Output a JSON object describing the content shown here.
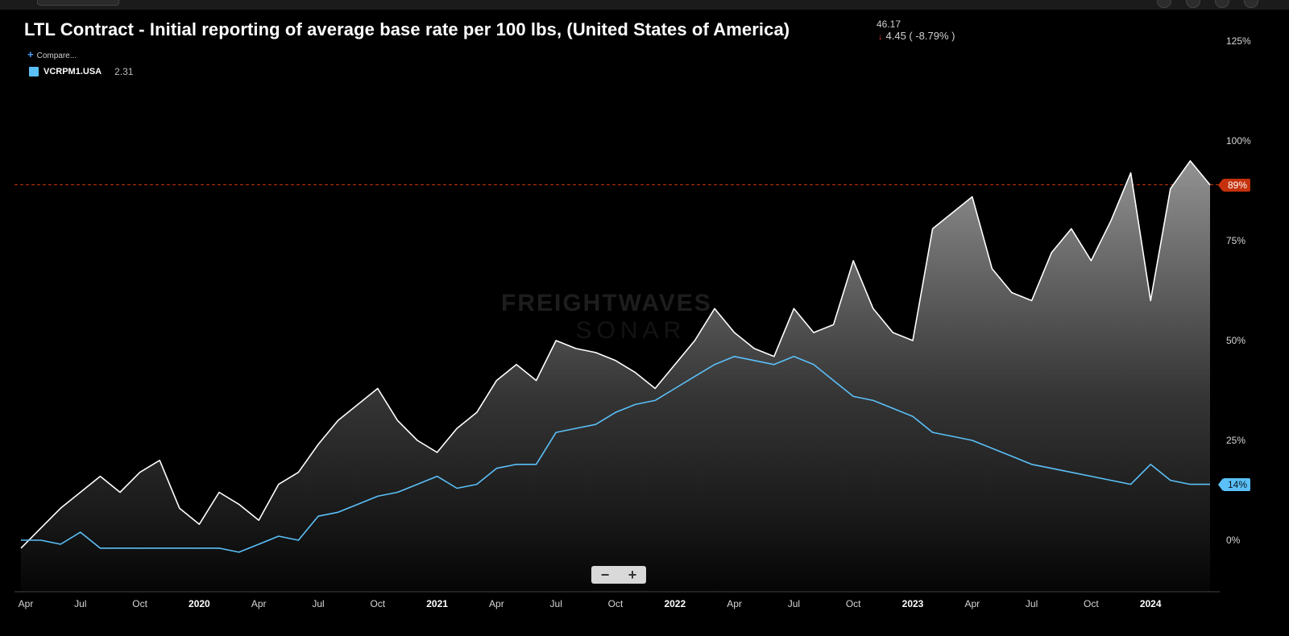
{
  "header": {
    "title": "LTL Contract - Initial reporting of average base rate per 100 lbs, (United States of America)",
    "last_value": "46.17",
    "change": "4.45 ( -8.79% )",
    "change_direction_icon": "down-arrow-icon",
    "compare_label": "Compare...",
    "compare_icon": "plus-icon"
  },
  "legend": {
    "series_name": "VCRPM1.USA",
    "series_value": "2.31",
    "swatch_color": "#5bc0f8"
  },
  "watermark": {
    "line1": "FREIGHTWAVES",
    "line2": "SONAR"
  },
  "badges": {
    "primary": "89%",
    "secondary": "14%"
  },
  "zoom": {
    "minus_label": "−",
    "plus_label": "+"
  },
  "colors": {
    "primary_line": "#ffffff",
    "secondary_line": "#5bc0f8",
    "reference_line": "#c4310c",
    "background": "#000000"
  },
  "chart_data": {
    "type": "area",
    "title": "LTL Contract - Initial reporting of average base rate per 100 lbs, (United States of America)",
    "y_axis": {
      "ticks": [
        "0%",
        "25%",
        "50%",
        "75%",
        "100%",
        "125%"
      ],
      "tick_values": [
        0,
        25,
        50,
        75,
        100,
        125
      ],
      "range": [
        -13,
        133
      ]
    },
    "x_axis": {
      "ticks": [
        "Apr",
        "Jul",
        "Oct",
        "2020",
        "Apr",
        "Jul",
        "Oct",
        "2021",
        "Apr",
        "Jul",
        "Oct",
        "2022",
        "Apr",
        "Jul",
        "Oct",
        "2023",
        "Apr",
        "Jul",
        "Oct",
        "2024"
      ],
      "tick_dates": [
        "2019-04",
        "2019-07",
        "2019-10",
        "2020-01",
        "2020-04",
        "2020-07",
        "2020-10",
        "2021-01",
        "2021-04",
        "2021-07",
        "2021-10",
        "2022-01",
        "2022-04",
        "2022-07",
        "2022-10",
        "2023-01",
        "2023-04",
        "2023-07",
        "2023-10",
        "2024-01"
      ],
      "year_ticks": [
        "2020",
        "2021",
        "2022",
        "2023",
        "2024"
      ],
      "range": [
        "2019-04",
        "2024-04"
      ]
    },
    "reference_line": {
      "value": 89,
      "label": "89%"
    },
    "series": [
      {
        "name": "",
        "style": "area",
        "color": "#ffffff",
        "x": [
          "2019-04",
          "2019-05",
          "2019-06",
          "2019-07",
          "2019-08",
          "2019-09",
          "2019-10",
          "2019-11",
          "2019-12",
          "2020-01",
          "2020-02",
          "2020-03",
          "2020-04",
          "2020-05",
          "2020-06",
          "2020-07",
          "2020-08",
          "2020-09",
          "2020-10",
          "2020-11",
          "2020-12",
          "2021-01",
          "2021-02",
          "2021-03",
          "2021-04",
          "2021-05",
          "2021-06",
          "2021-07",
          "2021-08",
          "2021-09",
          "2021-10",
          "2021-11",
          "2021-12",
          "2022-01",
          "2022-02",
          "2022-03",
          "2022-04",
          "2022-05",
          "2022-06",
          "2022-07",
          "2022-08",
          "2022-09",
          "2022-10",
          "2022-11",
          "2022-12",
          "2023-01",
          "2023-02",
          "2023-03",
          "2023-04",
          "2023-05",
          "2023-06",
          "2023-07",
          "2023-08",
          "2023-09",
          "2023-10",
          "2023-11",
          "2023-12",
          "2024-01",
          "2024-02",
          "2024-03",
          "2024-04"
        ],
        "y": [
          -2,
          3,
          8,
          12,
          16,
          12,
          17,
          20,
          8,
          4,
          12,
          9,
          5,
          14,
          17,
          24,
          30,
          34,
          38,
          30,
          25,
          22,
          28,
          32,
          40,
          44,
          40,
          50,
          48,
          47,
          45,
          42,
          38,
          44,
          50,
          58,
          52,
          48,
          46,
          58,
          52,
          54,
          70,
          58,
          52,
          50,
          78,
          82,
          86,
          68,
          62,
          60,
          72,
          78,
          70,
          80,
          92,
          60,
          88,
          95,
          89
        ]
      },
      {
        "name": "VCRPM1.USA",
        "style": "line",
        "color": "#5bc0f8",
        "x": [
          "2019-04",
          "2019-05",
          "2019-06",
          "2019-07",
          "2019-08",
          "2019-09",
          "2019-10",
          "2019-11",
          "2019-12",
          "2020-01",
          "2020-02",
          "2020-03",
          "2020-04",
          "2020-05",
          "2020-06",
          "2020-07",
          "2020-08",
          "2020-09",
          "2020-10",
          "2020-11",
          "2020-12",
          "2021-01",
          "2021-02",
          "2021-03",
          "2021-04",
          "2021-05",
          "2021-06",
          "2021-07",
          "2021-08",
          "2021-09",
          "2021-10",
          "2021-11",
          "2021-12",
          "2022-01",
          "2022-02",
          "2022-03",
          "2022-04",
          "2022-05",
          "2022-06",
          "2022-07",
          "2022-08",
          "2022-09",
          "2022-10",
          "2022-11",
          "2022-12",
          "2023-01",
          "2023-02",
          "2023-03",
          "2023-04",
          "2023-05",
          "2023-06",
          "2023-07",
          "2023-08",
          "2023-09",
          "2023-10",
          "2023-11",
          "2023-12",
          "2024-01",
          "2024-02",
          "2024-03",
          "2024-04"
        ],
        "y": [
          0,
          0,
          -1,
          2,
          -2,
          -2,
          -2,
          -2,
          -2,
          -2,
          -2,
          -3,
          -1,
          1,
          0,
          6,
          7,
          9,
          11,
          12,
          14,
          16,
          13,
          14,
          18,
          19,
          19,
          27,
          28,
          29,
          32,
          34,
          35,
          38,
          41,
          44,
          46,
          45,
          44,
          46,
          44,
          40,
          36,
          35,
          33,
          31,
          27,
          26,
          25,
          23,
          21,
          19,
          18,
          17,
          16,
          15,
          14,
          19,
          15,
          14,
          14
        ]
      }
    ],
    "grid": false,
    "legend_position": "top-left"
  }
}
